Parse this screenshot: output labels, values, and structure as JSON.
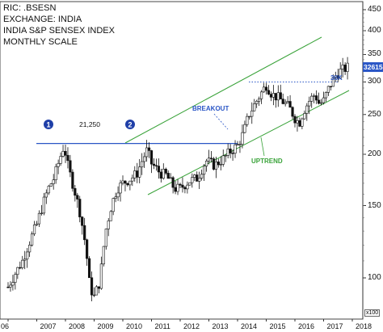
{
  "chart_data": {
    "type": "candlestick",
    "header": {
      "ric": "RIC: .BSESN",
      "exchange": "EXCHANGE: INDIA",
      "index": "INDIA S&P SENSEX INDEX",
      "scale": "MONTHLY SCALE"
    },
    "y_axis": {
      "scale": "log",
      "unit_label": "x100",
      "ticks": [
        100,
        150,
        200,
        250,
        300,
        350,
        400,
        450
      ],
      "last_price_label": "32615",
      "last_price": 326.15
    },
    "x_axis": {
      "ticks": [
        "06",
        "2007",
        "2008",
        "2009",
        "2010",
        "2011",
        "2012",
        "2013",
        "2014",
        "2015",
        "2016",
        "2017",
        "2018"
      ]
    },
    "levels": {
      "resistance_label": "21,250",
      "resistance": 212.5,
      "breakout_label": "BREAKOUT",
      "level_30k_label": "30K",
      "level_30k": 300,
      "uptrend_label": "UPTREND",
      "marker_1": "1",
      "marker_2": "2"
    },
    "monthly_close": [
      [
        2006.0,
        95
      ],
      [
        2006.5,
        110
      ],
      [
        2007.0,
        135
      ],
      [
        2007.2,
        150
      ],
      [
        2007.4,
        165
      ],
      [
        2007.6,
        175
      ],
      [
        2007.8,
        195
      ],
      [
        2007.95,
        210
      ],
      [
        2008.1,
        185
      ],
      [
        2008.3,
        165
      ],
      [
        2008.5,
        145
      ],
      [
        2008.7,
        120
      ],
      [
        2008.85,
        95
      ],
      [
        2009.0,
        90
      ],
      [
        2009.2,
        98
      ],
      [
        2009.4,
        130
      ],
      [
        2009.6,
        150
      ],
      [
        2009.8,
        165
      ],
      [
        2010.0,
        170
      ],
      [
        2010.3,
        175
      ],
      [
        2010.5,
        180
      ],
      [
        2010.7,
        195
      ],
      [
        2010.85,
        205
      ],
      [
        2011.0,
        190
      ],
      [
        2011.3,
        180
      ],
      [
        2011.5,
        178
      ],
      [
        2011.8,
        165
      ],
      [
        2012.0,
        165
      ],
      [
        2012.3,
        172
      ],
      [
        2012.6,
        175
      ],
      [
        2012.9,
        193
      ],
      [
        2013.2,
        188
      ],
      [
        2013.5,
        195
      ],
      [
        2013.8,
        205
      ],
      [
        2014.0,
        210
      ],
      [
        2014.2,
        225
      ],
      [
        2014.4,
        250
      ],
      [
        2014.6,
        265
      ],
      [
        2014.8,
        280
      ],
      [
        2015.0,
        295
      ],
      [
        2015.2,
        280
      ],
      [
        2015.4,
        275
      ],
      [
        2015.6,
        268
      ],
      [
        2015.8,
        260
      ],
      [
        2016.0,
        245
      ],
      [
        2016.15,
        238
      ],
      [
        2016.3,
        255
      ],
      [
        2016.5,
        270
      ],
      [
        2016.7,
        280
      ],
      [
        2016.85,
        265
      ],
      [
        2017.0,
        270
      ],
      [
        2017.2,
        292
      ],
      [
        2017.4,
        310
      ],
      [
        2017.55,
        318
      ],
      [
        2017.7,
        322
      ],
      [
        2017.85,
        326
      ]
    ]
  }
}
